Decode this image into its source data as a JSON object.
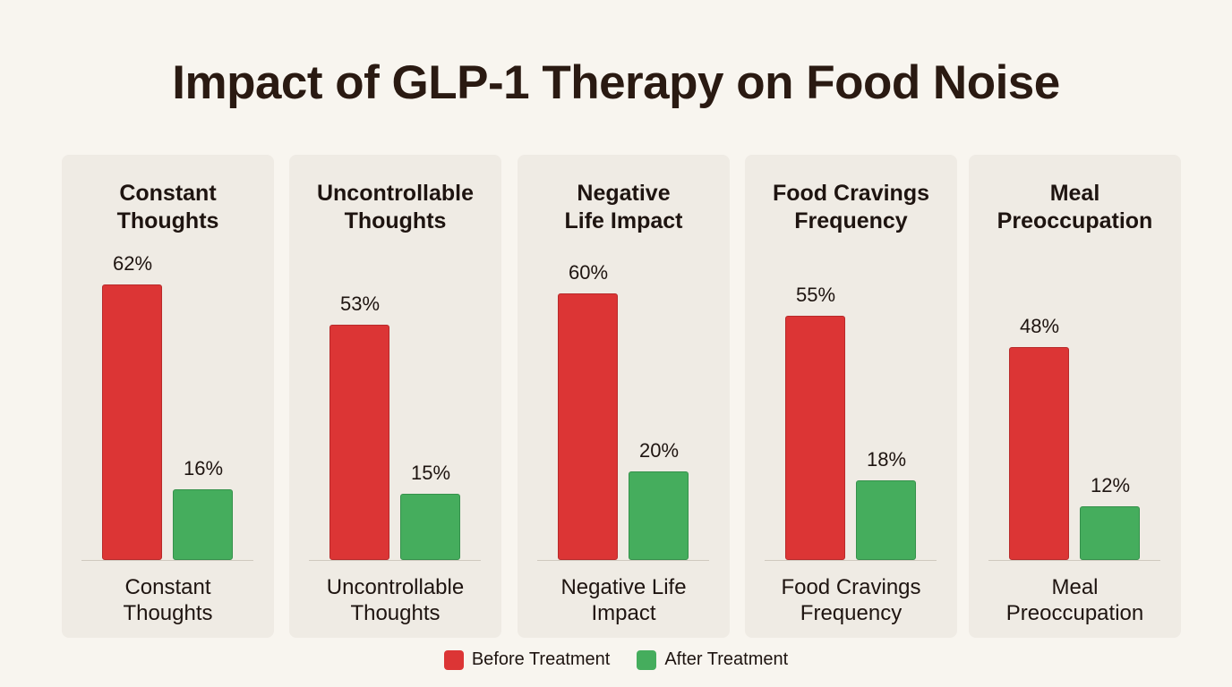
{
  "chart_data": {
    "type": "bar",
    "title": "Impact of GLP-1 Therapy on Food Noise",
    "categories": [
      {
        "title": "Constant\nThoughts",
        "label": "Constant\nThoughts"
      },
      {
        "title": "Uncontrollable\nThoughts",
        "label": "Uncontrollable\nThoughts"
      },
      {
        "title": "Negative\nLife Impact",
        "label": "Negative Life\nImpact"
      },
      {
        "title": "Food Cravings\nFrequency",
        "label": "Food Cravings\nFrequency"
      },
      {
        "title": "Meal\nPreoccupation",
        "label": "Meal\nPreoccupation"
      }
    ],
    "series": [
      {
        "name": "Before Treatment",
        "color": "#dc3535",
        "values": [
          62,
          53,
          60,
          55,
          48
        ],
        "labels": [
          "62%",
          "53%",
          "60%",
          "55%",
          "48%"
        ]
      },
      {
        "name": "After Treatment",
        "color": "#45ad5d",
        "values": [
          16,
          15,
          20,
          18,
          12
        ],
        "labels": [
          "16%",
          "15%",
          "20%",
          "18%",
          "12%"
        ]
      }
    ],
    "ylim": [
      0,
      100
    ],
    "unit": "%",
    "grid": false,
    "legend": "bottom-center"
  }
}
